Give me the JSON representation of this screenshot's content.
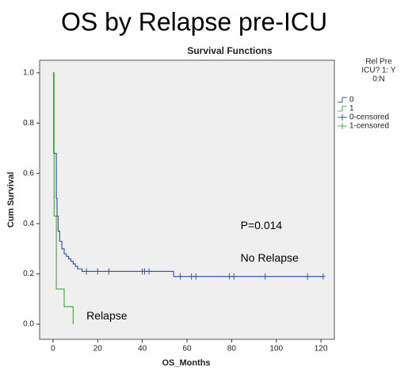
{
  "chart_data": {
    "type": "km",
    "title": "OS by Relapse pre-ICU",
    "subtitle": "Survival Functions",
    "xlabel": "OS_Months",
    "ylabel": "Cum Survival",
    "xlim": [
      -6,
      126
    ],
    "ylim": [
      -0.06,
      1.05
    ],
    "xticks": [
      0,
      20,
      40,
      60,
      80,
      100,
      120
    ],
    "yticks": [
      {
        "value": 0,
        "label": "0.0"
      },
      0.2,
      0.4,
      0.6,
      0.8,
      {
        "value": 1,
        "label": "1.0"
      }
    ],
    "legend_title": [
      "Rel Pre",
      "ICU? 1: Y",
      "0:N"
    ],
    "series": [
      {
        "name": "0",
        "color": "#3a5aa8",
        "kind": "step",
        "x": [
          0,
          0.3,
          1.5,
          1.8,
          2.3,
          3,
          4,
          5,
          6,
          7,
          8,
          9,
          10,
          11,
          13,
          54,
          121
        ],
        "values": [
          1,
          0.68,
          0.5,
          0.43,
          0.37,
          0.33,
          0.3,
          0.28,
          0.27,
          0.26,
          0.25,
          0.24,
          0.23,
          0.22,
          0.21,
          0.19,
          0.19
        ]
      },
      {
        "name": "1",
        "color": "#4caf50",
        "kind": "step",
        "x": [
          0,
          0.5,
          1.5,
          5,
          9
        ],
        "values": [
          1,
          0.43,
          0.14,
          0.07,
          0
        ]
      },
      {
        "name": "0-censored",
        "color": "#3a5aa8",
        "kind": "censor",
        "x": [
          15,
          20,
          25,
          40,
          41,
          43,
          57,
          62,
          64,
          79,
          81,
          95,
          114,
          121
        ],
        "values": [
          0.21,
          0.21,
          0.21,
          0.21,
          0.21,
          0.21,
          0.19,
          0.19,
          0.19,
          0.19,
          0.19,
          0.19,
          0.19,
          0.19
        ]
      },
      {
        "name": "1-censored",
        "color": "#4caf50",
        "kind": "censor",
        "x": [],
        "values": []
      }
    ],
    "annotations": [
      "P=0.014",
      "No Relapse",
      "Relapse"
    ]
  }
}
